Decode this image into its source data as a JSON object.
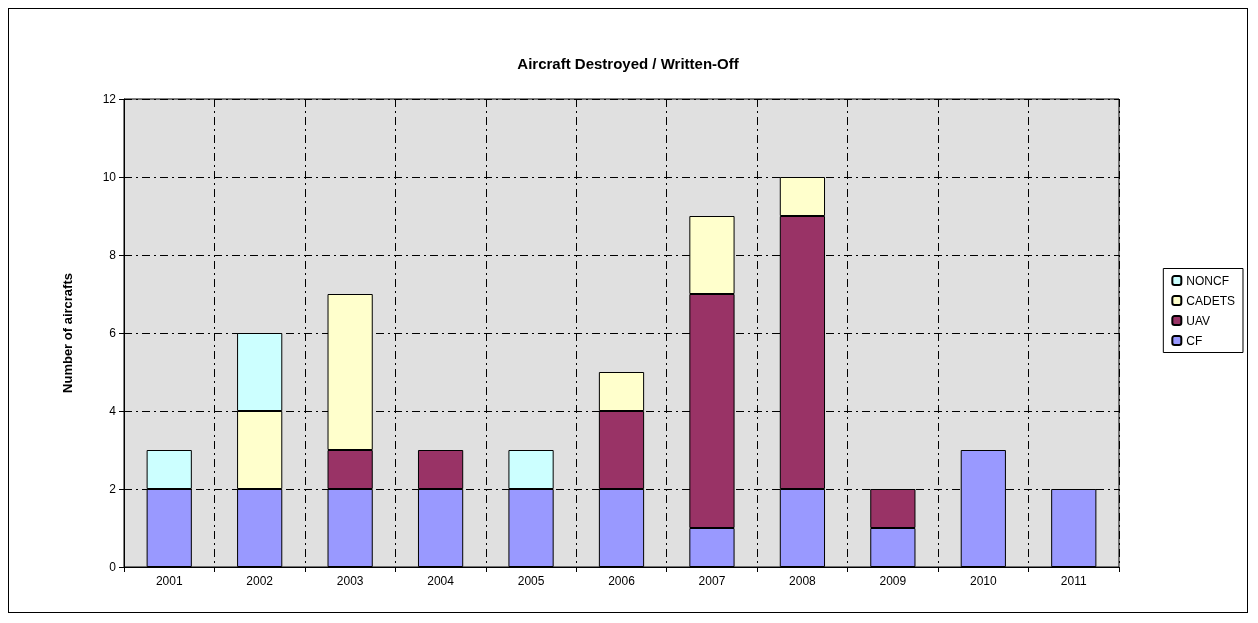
{
  "chart_data": {
    "type": "bar",
    "title": "Aircraft Destroyed / Written-Off",
    "ylabel": "Number of aircrafts",
    "stacked": true,
    "grid": true,
    "legend": "right",
    "categories": [
      "2001",
      "2002",
      "2003",
      "2004",
      "2005",
      "2006",
      "2007",
      "2008",
      "2009",
      "2010",
      "2011"
    ],
    "ylim": [
      0,
      12
    ],
    "yticks": [
      0,
      2,
      4,
      6,
      8,
      10,
      12
    ],
    "series": [
      {
        "name": "CF",
        "color": "#9999ff",
        "values": [
          2,
          2,
          2,
          2,
          2,
          2,
          1,
          2,
          1,
          3,
          2
        ]
      },
      {
        "name": "UAV",
        "color": "#993366",
        "values": [
          null,
          null,
          1,
          1,
          null,
          2,
          6,
          7,
          1,
          null,
          null
        ]
      },
      {
        "name": "CADETS",
        "color": "#ffffcc",
        "values": [
          null,
          2,
          4,
          null,
          null,
          1,
          2,
          1,
          null,
          null,
          null
        ]
      },
      {
        "name": "NONCF",
        "color": "#ccffff",
        "values": [
          1,
          2,
          null,
          null,
          1,
          null,
          null,
          null,
          null,
          null,
          null
        ]
      }
    ]
  }
}
